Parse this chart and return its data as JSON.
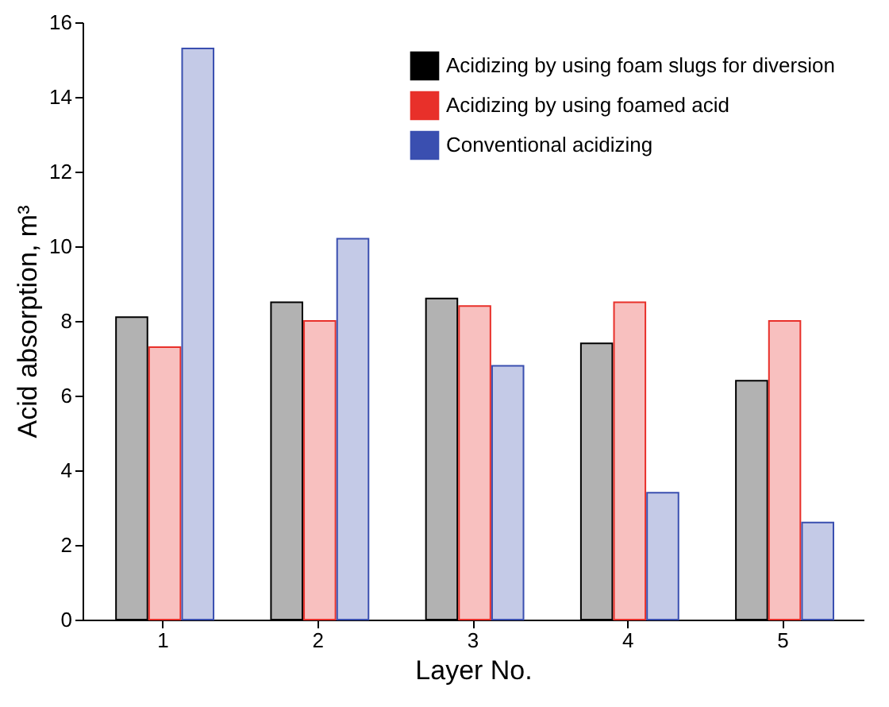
{
  "chart_data": {
    "type": "bar",
    "xlabel": "Layer No.",
    "ylabel": "Acid absorption, m³",
    "categories": [
      "1",
      "2",
      "3",
      "4",
      "5"
    ],
    "series": [
      {
        "name": "Acidizing by using foam slugs for diversion",
        "color": "#000000",
        "values": [
          8.1,
          8.5,
          8.6,
          7.4,
          6.4
        ]
      },
      {
        "name": "Acidizing by using foamed acid",
        "color": "#e8302a",
        "values": [
          7.3,
          8.0,
          8.4,
          8.5,
          8.0
        ]
      },
      {
        "name": "Conventional acidizing",
        "color": "#3a4fb0",
        "values": [
          15.3,
          10.2,
          6.8,
          3.4,
          2.6
        ]
      }
    ],
    "ylim": [
      0,
      16
    ],
    "yticks": [
      0,
      2,
      4,
      6,
      8,
      10,
      12,
      14,
      16
    ],
    "legend": "top right"
  }
}
